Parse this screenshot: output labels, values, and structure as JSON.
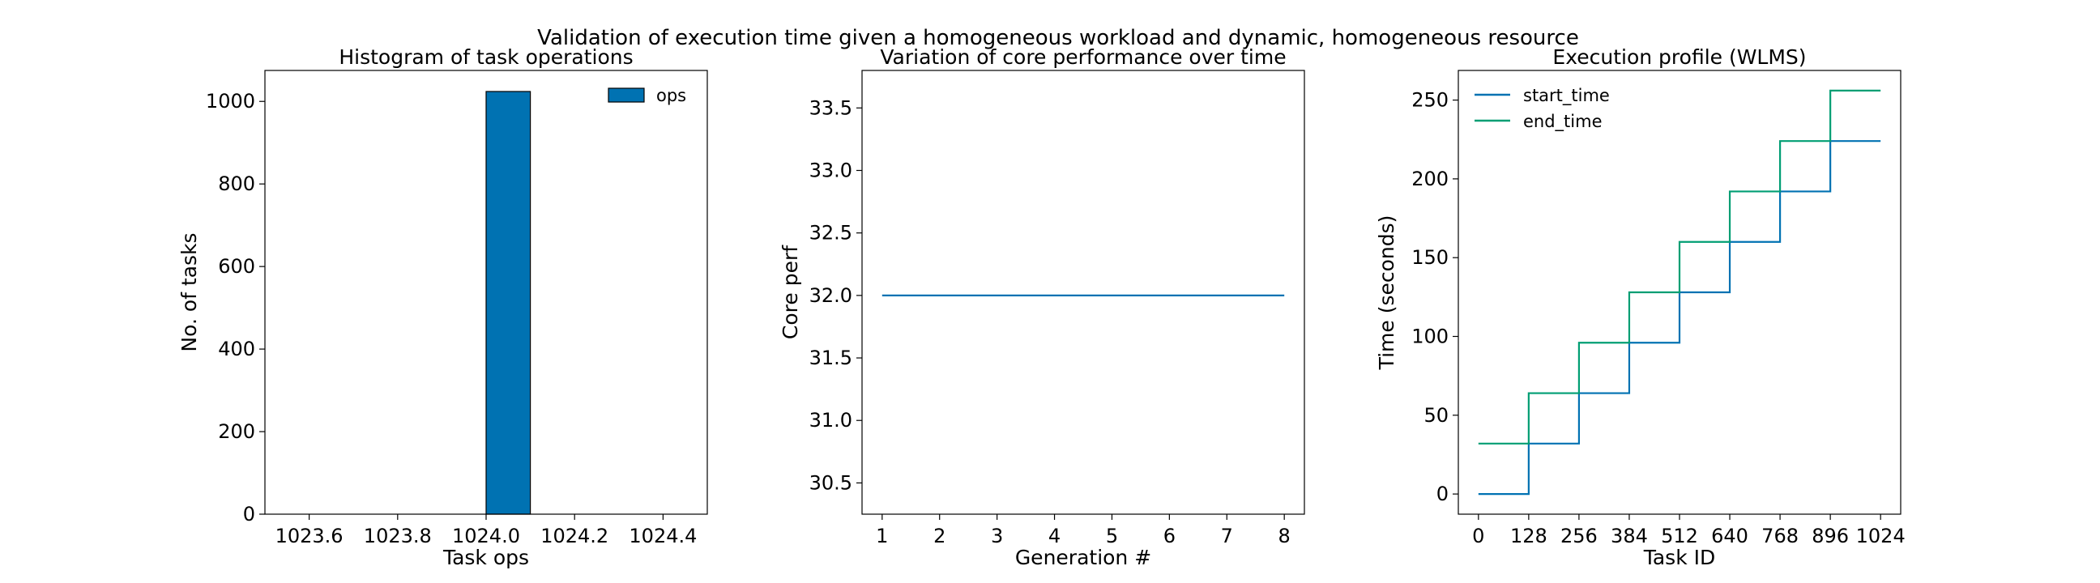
{
  "figure": {
    "suptitle": "Validation of execution time given a homogeneous workload and dynamic, homogeneous resource"
  },
  "chart_data": [
    {
      "type": "bar",
      "title": "Histogram of task operations",
      "xlabel": "Task ops",
      "ylabel": "No. of tasks",
      "xlim": [
        1023.5,
        1024.5
      ],
      "ylim": [
        0,
        1075
      ],
      "xticks": [
        1023.6,
        1023.8,
        1024.0,
        1024.2,
        1024.4
      ],
      "xtick_labels": [
        "1023.6",
        "1023.8",
        "1024.0",
        "1024.2",
        "1024.4"
      ],
      "yticks": [
        0,
        200,
        400,
        600,
        800,
        1000
      ],
      "ytick_labels": [
        "0",
        "200",
        "400",
        "600",
        "800",
        "1000"
      ],
      "series": [
        {
          "name": "ops",
          "color": "#0072b2",
          "bins": [
            {
              "left": 1024.0,
              "right": 1024.1,
              "value": 1024
            }
          ]
        }
      ],
      "legend": "top-right",
      "grid": false
    },
    {
      "type": "line",
      "title": "Variation of core performance over time",
      "xlabel": "Generation #",
      "ylabel": "Core perf",
      "xlim": [
        0.65,
        8.35
      ],
      "ylim": [
        30.25,
        33.8
      ],
      "xticks": [
        1,
        2,
        3,
        4,
        5,
        6,
        7,
        8
      ],
      "xtick_labels": [
        "1",
        "2",
        "3",
        "4",
        "5",
        "6",
        "7",
        "8"
      ],
      "yticks": [
        30.5,
        31.0,
        31.5,
        32.0,
        32.5,
        33.0,
        33.5
      ],
      "ytick_labels": [
        "30.5",
        "31.0",
        "31.5",
        "32.0",
        "32.5",
        "33.0",
        "33.5"
      ],
      "series": [
        {
          "color": "#0072b2",
          "x": [
            1,
            2,
            3,
            4,
            5,
            6,
            7,
            8
          ],
          "y": [
            32,
            32,
            32,
            32,
            32,
            32,
            32,
            32
          ]
        }
      ],
      "grid": false
    },
    {
      "type": "line",
      "title": "Execution profile (WLMS)",
      "xlabel": "Task ID",
      "ylabel": "Time (seconds)",
      "xlim": [
        -51.2,
        1075.2
      ],
      "ylim": [
        -12.8,
        268.8
      ],
      "xticks": [
        0,
        128,
        256,
        384,
        512,
        640,
        768,
        896,
        1024
      ],
      "xtick_labels": [
        "0",
        "128",
        "256",
        "384",
        "512",
        "640",
        "768",
        "896",
        "1024"
      ],
      "yticks": [
        0,
        50,
        100,
        150,
        200,
        250
      ],
      "ytick_labels": [
        "0",
        "50",
        "100",
        "150",
        "200",
        "250"
      ],
      "series": [
        {
          "name": "start_time",
          "color": "#0072b2",
          "step_points": [
            [
              0,
              0
            ],
            [
              128,
              0
            ],
            [
              128,
              32
            ],
            [
              256,
              32
            ],
            [
              256,
              64
            ],
            [
              384,
              64
            ],
            [
              384,
              96
            ],
            [
              512,
              96
            ],
            [
              512,
              128
            ],
            [
              640,
              128
            ],
            [
              640,
              160
            ],
            [
              768,
              160
            ],
            [
              768,
              192
            ],
            [
              896,
              192
            ],
            [
              896,
              224
            ],
            [
              1024,
              224
            ]
          ]
        },
        {
          "name": "end_time",
          "color": "#009e73",
          "step_points": [
            [
              0,
              32
            ],
            [
              128,
              32
            ],
            [
              128,
              64
            ],
            [
              256,
              64
            ],
            [
              256,
              96
            ],
            [
              384,
              96
            ],
            [
              384,
              128
            ],
            [
              512,
              128
            ],
            [
              512,
              160
            ],
            [
              640,
              160
            ],
            [
              640,
              192
            ],
            [
              768,
              192
            ],
            [
              768,
              224
            ],
            [
              896,
              224
            ],
            [
              896,
              256
            ],
            [
              1024,
              256
            ]
          ]
        }
      ],
      "legend": "top-left",
      "grid": false
    }
  ]
}
